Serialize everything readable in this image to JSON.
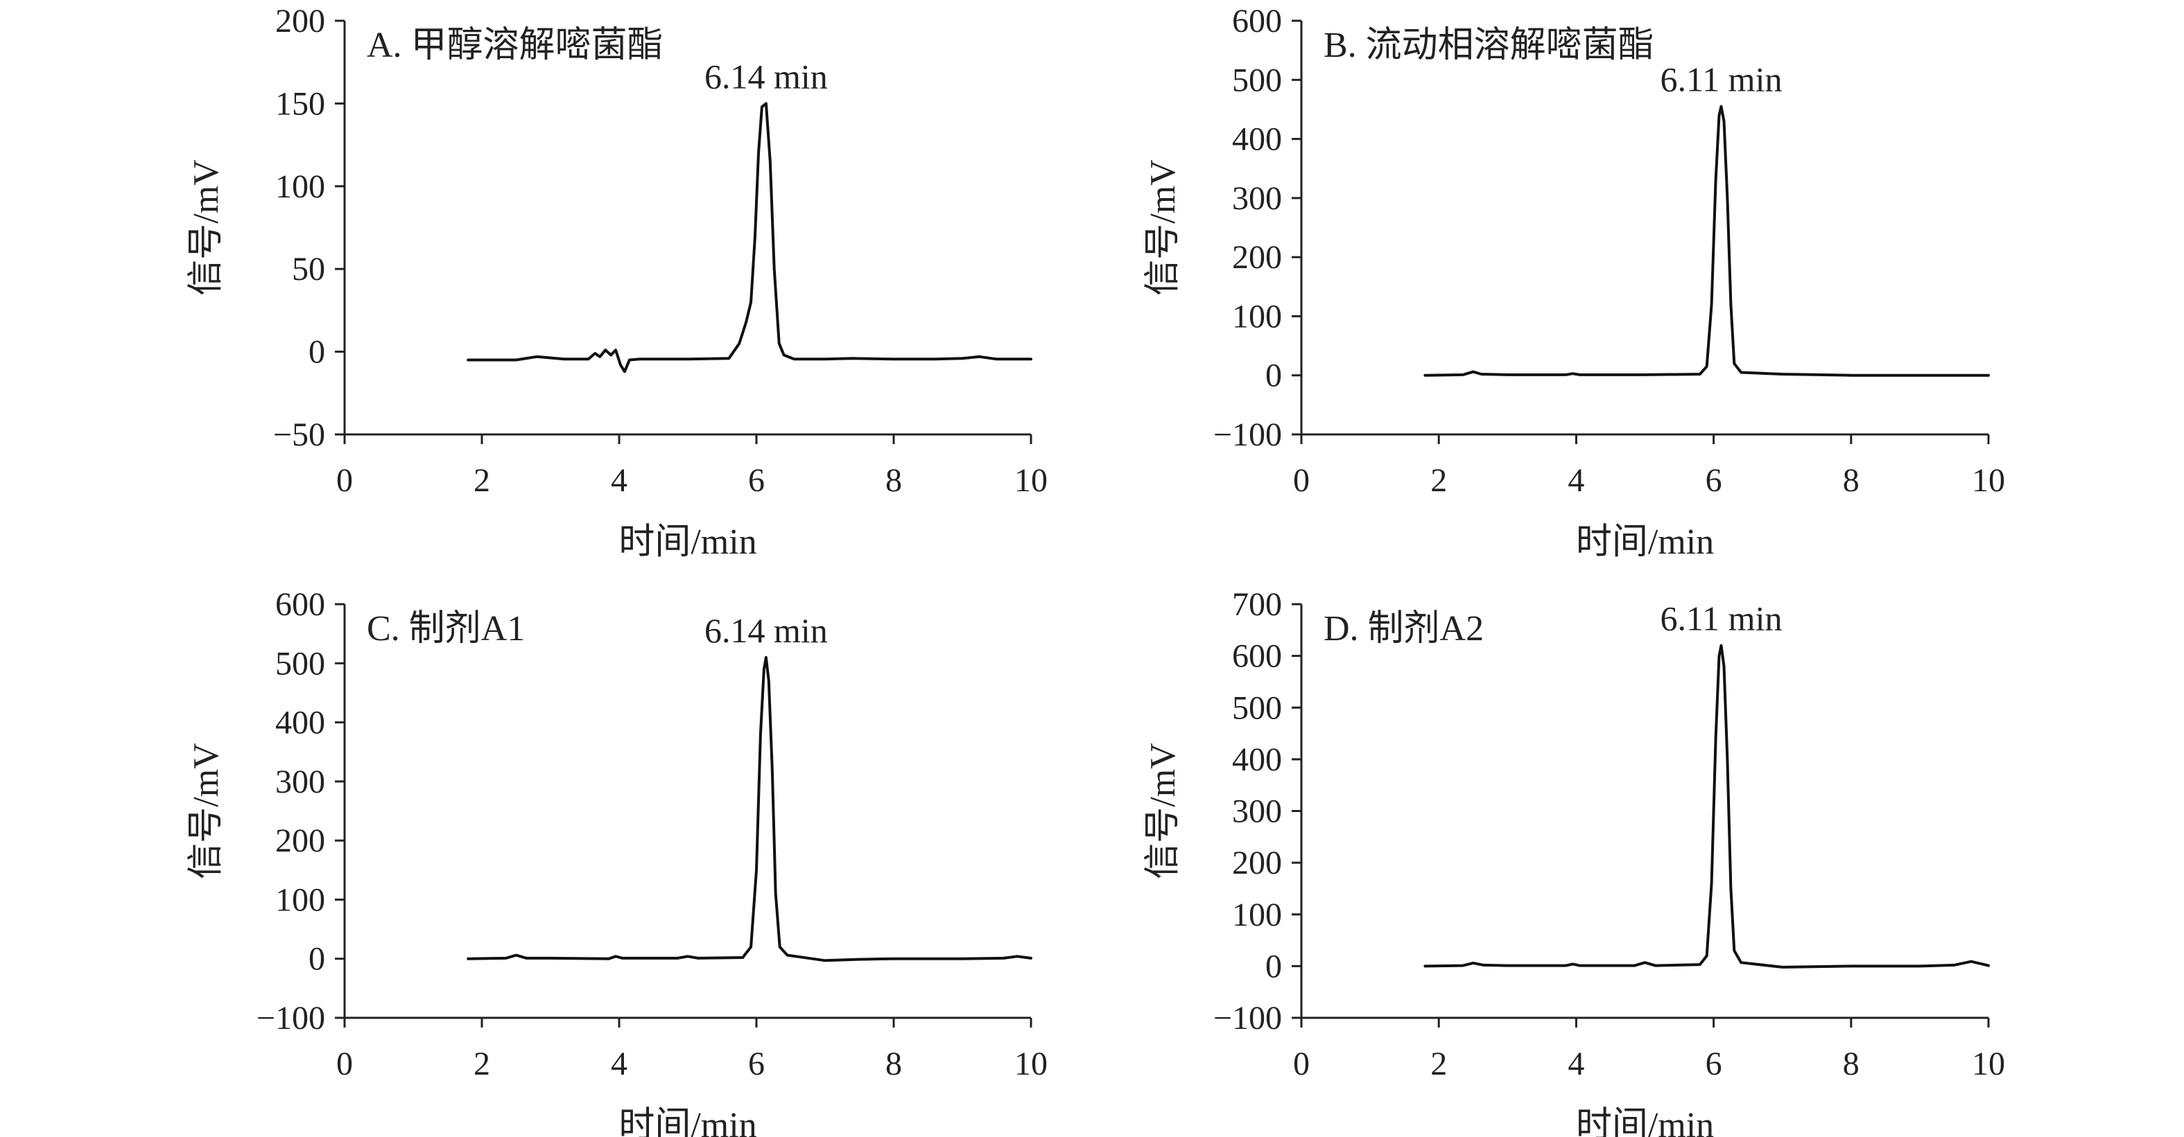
{
  "chart_data": [
    {
      "type": "line",
      "title": "A. 甲醇溶解嘧菌酯",
      "xlabel": "时间/min",
      "ylabel": "信号/mV",
      "xlim": [
        0,
        10
      ],
      "ylim": [
        -50,
        200
      ],
      "xticks": [
        0,
        2,
        4,
        6,
        8,
        10
      ],
      "yticks": [
        -50,
        0,
        50,
        100,
        150,
        200
      ],
      "x_tick_labels": [
        "0",
        "2",
        "4",
        "6",
        "8",
        "10"
      ],
      "y_tick_labels": [
        "−50",
        "0",
        "50",
        "100",
        "150",
        "200"
      ],
      "grid": false,
      "annotation": "6.14 min",
      "peak": {
        "x": 6.14,
        "y": 150
      },
      "x": [
        1.8,
        2.5,
        2.8,
        3.2,
        3.55,
        3.65,
        3.72,
        3.8,
        3.88,
        3.95,
        4.02,
        4.08,
        4.15,
        4.3,
        5.0,
        5.6,
        5.75,
        5.85,
        5.92,
        5.98,
        6.03,
        6.08,
        6.14,
        6.2,
        6.26,
        6.33,
        6.4,
        6.55,
        7.0,
        7.4,
        8.0,
        8.6,
        9.0,
        9.25,
        9.5,
        10.0
      ],
      "y": [
        -5,
        -5,
        -3,
        -4.5,
        -4.5,
        -1,
        -3,
        1,
        -2,
        1,
        -8,
        -12,
        -5,
        -4.5,
        -4.5,
        -4,
        5,
        18,
        30,
        70,
        120,
        148,
        150,
        115,
        50,
        5,
        -2,
        -4.5,
        -4.5,
        -4,
        -4.5,
        -4.5,
        -4,
        -3,
        -4.5,
        -4.5
      ],
      "series": [
        {
          "values": "y"
        }
      ]
    },
    {
      "type": "line",
      "title": "B. 流动相溶解嘧菌酯",
      "xlabel": "时间/min",
      "ylabel": "信号/mV",
      "xlim": [
        0,
        10
      ],
      "ylim": [
        -100,
        600
      ],
      "xticks": [
        0,
        2,
        4,
        6,
        8,
        10
      ],
      "yticks": [
        -100,
        0,
        100,
        200,
        300,
        400,
        500,
        600
      ],
      "x_tick_labels": [
        "0",
        "2",
        "4",
        "6",
        "8",
        "10"
      ],
      "y_tick_labels": [
        "−100",
        "0",
        "100",
        "200",
        "300",
        "400",
        "500",
        "600"
      ],
      "grid": false,
      "annotation": "6.11 min",
      "peak": {
        "x": 6.11,
        "y": 455
      },
      "x": [
        1.8,
        2.35,
        2.5,
        2.62,
        3.0,
        3.85,
        3.95,
        4.05,
        5.0,
        5.8,
        5.9,
        5.97,
        6.03,
        6.08,
        6.11,
        6.15,
        6.2,
        6.25,
        6.3,
        6.4,
        7.0,
        8.0,
        9.0,
        10.0
      ],
      "y": [
        0,
        1,
        6,
        2,
        1,
        1,
        3,
        1,
        1,
        2,
        15,
        120,
        330,
        440,
        455,
        430,
        300,
        120,
        20,
        5,
        2,
        0,
        0,
        0
      ],
      "series": [
        {
          "values": "y"
        }
      ]
    },
    {
      "type": "line",
      "title": "C. 制剂A1",
      "xlabel": "时间/min",
      "ylabel": "信号/mV",
      "xlim": [
        0,
        10
      ],
      "ylim": [
        -100,
        600
      ],
      "xticks": [
        0,
        2,
        4,
        6,
        8,
        10
      ],
      "yticks": [
        -100,
        0,
        100,
        200,
        300,
        400,
        500,
        600
      ],
      "x_tick_labels": [
        "0",
        "2",
        "4",
        "6",
        "8",
        "10"
      ],
      "y_tick_labels": [
        "−100",
        "0",
        "100",
        "200",
        "300",
        "400",
        "500",
        "600"
      ],
      "grid": false,
      "annotation": "6.14 min",
      "peak": {
        "x": 6.14,
        "y": 510
      },
      "x": [
        1.8,
        2.35,
        2.5,
        2.65,
        3.0,
        3.85,
        3.95,
        4.05,
        4.85,
        5.0,
        5.15,
        5.8,
        5.92,
        6.0,
        6.06,
        6.11,
        6.14,
        6.18,
        6.23,
        6.28,
        6.34,
        6.45,
        7.0,
        7.5,
        8.0,
        9.0,
        9.6,
        9.8,
        10.0
      ],
      "y": [
        0,
        1,
        6,
        1,
        1,
        0,
        4,
        1,
        1,
        4,
        1,
        2,
        20,
        150,
        380,
        490,
        510,
        470,
        320,
        110,
        20,
        6,
        -3,
        -1,
        0,
        0,
        1,
        4,
        1
      ],
      "series": [
        {
          "values": "y"
        }
      ]
    },
    {
      "type": "line",
      "title": "D. 制剂A2",
      "xlabel": "时间/min",
      "ylabel": "信号/mV",
      "xlim": [
        0,
        10
      ],
      "ylim": [
        -100,
        700
      ],
      "xticks": [
        0,
        2,
        4,
        6,
        8,
        10
      ],
      "yticks": [
        -100,
        0,
        100,
        200,
        300,
        400,
        500,
        600,
        700
      ],
      "x_tick_labels": [
        "0",
        "2",
        "4",
        "6",
        "8",
        "10"
      ],
      "y_tick_labels": [
        "−100",
        "0",
        "100",
        "200",
        "300",
        "400",
        "500",
        "600",
        "700"
      ],
      "grid": false,
      "annotation": "6.11 min",
      "peak": {
        "x": 6.11,
        "y": 620
      },
      "x": [
        1.8,
        2.35,
        2.5,
        2.65,
        3.0,
        3.85,
        3.95,
        4.05,
        4.85,
        5.0,
        5.15,
        5.8,
        5.9,
        5.97,
        6.03,
        6.08,
        6.11,
        6.15,
        6.2,
        6.25,
        6.3,
        6.4,
        7.0,
        7.5,
        8.0,
        9.0,
        9.5,
        9.75,
        10.0
      ],
      "y": [
        0,
        1,
        6,
        2,
        1,
        1,
        4,
        1,
        1,
        7,
        1,
        3,
        20,
        160,
        440,
        600,
        620,
        580,
        400,
        150,
        30,
        7,
        -2,
        -1,
        0,
        0,
        2,
        9,
        1
      ],
      "series": [
        {
          "values": "y"
        }
      ]
    }
  ]
}
